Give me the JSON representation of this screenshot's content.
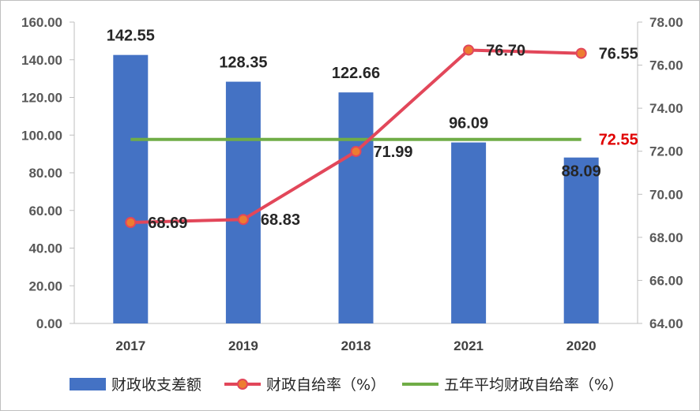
{
  "chart_data": {
    "type": "bar",
    "categories": [
      "2017",
      "2019",
      "2018",
      "2021",
      "2020"
    ],
    "series": [
      {
        "name": "财政收支差额",
        "type": "bar",
        "axis": "left",
        "values": [
          142.55,
          128.35,
          122.66,
          96.09,
          88.09
        ],
        "labels": [
          "142.55",
          "128.35",
          "122.66",
          "96.09",
          "88.09"
        ]
      },
      {
        "name": "财政自给率（%）",
        "type": "line",
        "axis": "right",
        "values": [
          68.69,
          68.83,
          71.99,
          76.7,
          76.55
        ],
        "labels": [
          "68.69",
          "68.83",
          "71.99",
          "76.70",
          "76.55"
        ]
      },
      {
        "name": "五年平均财政自给率（%）",
        "type": "line",
        "axis": "right",
        "values": [
          72.55,
          72.55,
          72.55,
          72.55,
          72.55
        ],
        "end_label": "72.55"
      }
    ],
    "y_left": {
      "min": 0,
      "max": 160,
      "step": 20,
      "ticks": [
        "0.00",
        "20.00",
        "40.00",
        "60.00",
        "80.00",
        "100.00",
        "120.00",
        "140.00",
        "160.00"
      ]
    },
    "y_right": {
      "min": 64,
      "max": 78,
      "step": 2,
      "ticks": [
        "64.00",
        "66.00",
        "68.00",
        "70.00",
        "72.00",
        "74.00",
        "76.00",
        "78.00"
      ]
    },
    "grid": false,
    "legend": "bottom",
    "colors": {
      "bar": "#4472C4",
      "line": "#E2475A",
      "marker_fill": "#ED7D31",
      "avg_line": "#70AD47",
      "avg_label": "#E00000"
    }
  }
}
